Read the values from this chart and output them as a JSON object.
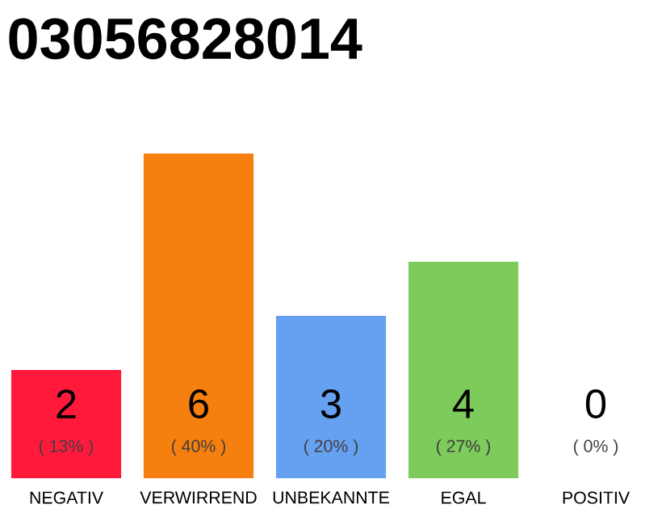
{
  "chart_data": {
    "type": "bar",
    "title": "03056828014",
    "categories": [
      "NEGATIV",
      "VERWIRREND",
      "UNBEKANNTE",
      "EGAL",
      "POSITIV"
    ],
    "values": [
      2,
      6,
      3,
      4,
      0
    ],
    "colors": [
      "#ff1a3c",
      "#f57f0f",
      "#66a0f0",
      "#7dcb5a",
      "#eeeeee"
    ],
    "ylim": [
      0,
      6
    ],
    "data_labels": true,
    "annotations": [
      "( 13% )",
      "( 40% )",
      "( 20% )",
      "( 27% )",
      "( 0% )"
    ]
  }
}
